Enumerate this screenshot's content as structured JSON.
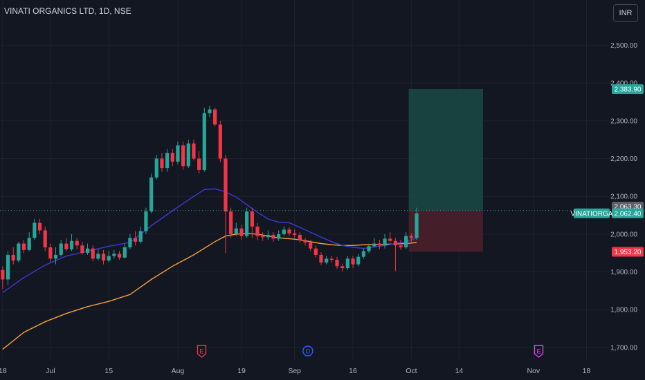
{
  "header": {
    "symbol_title": "VINATI ORGANICS LTD, 1D, NSE",
    "currency": "INR"
  },
  "colors": {
    "background": "#131722",
    "up": "#26a69a",
    "down": "#f23645",
    "ma_fast": "#3d3ad6",
    "ma_slow": "#f7a13b",
    "target_zone": "#1a4a44",
    "stop_zone": "#4a1f2a",
    "event_earnings": "#f23645",
    "event_dividend": "#2962ff",
    "event_future_earnings": "#e040fb"
  },
  "chart_data": {
    "type": "candlestick",
    "y_ticks": [
      "2,500.00",
      "2,400.00",
      "2,300.00",
      "2,200.00",
      "2,100.00",
      "2,000.00",
      "1,900.00",
      "1,800.00",
      "1,700.00"
    ],
    "y_tick_values": [
      2500,
      2400,
      2300,
      2200,
      2100,
      2000,
      1900,
      1800,
      1700
    ],
    "ylim": [
      1665,
      2565
    ],
    "x_ticks": [
      {
        "label": "18",
        "idx": 0
      },
      {
        "label": "Jul",
        "idx": 9
      },
      {
        "label": "15",
        "idx": 20
      },
      {
        "label": "Aug",
        "idx": 33
      },
      {
        "label": "19",
        "idx": 45
      },
      {
        "label": "Sep",
        "idx": 55
      },
      {
        "label": "16",
        "idx": 66
      },
      {
        "label": "Oct",
        "idx": 77
      },
      {
        "label": "14",
        "idx": 86
      },
      {
        "label": "Nov",
        "idx": 100
      },
      {
        "label": "18",
        "idx": 110
      }
    ],
    "x_index_range": [
      -0.5,
      114.5
    ],
    "candles": [
      [
        1905,
        1880,
        1915,
        1855
      ],
      [
        1880,
        1945,
        1955,
        1865
      ],
      [
        1945,
        1930,
        1965,
        1920
      ],
      [
        1930,
        1975,
        1980,
        1925
      ],
      [
        1975,
        1958,
        1985,
        1950
      ],
      [
        1958,
        1990,
        2005,
        1955
      ],
      [
        1990,
        2030,
        2040,
        1985
      ],
      [
        2030,
        2010,
        2040,
        2000
      ],
      [
        2010,
        1965,
        2020,
        1955
      ],
      [
        1965,
        1935,
        1975,
        1925
      ],
      [
        1935,
        1945,
        1965,
        1920
      ],
      [
        1945,
        1975,
        1985,
        1940
      ],
      [
        1975,
        1960,
        1990,
        1955
      ],
      [
        1960,
        1982,
        2000,
        1955
      ],
      [
        1982,
        1970,
        1990,
        1960
      ],
      [
        1970,
        1950,
        1980,
        1945
      ],
      [
        1950,
        1962,
        1975,
        1945
      ],
      [
        1962,
        1935,
        1970,
        1928
      ],
      [
        1935,
        1948,
        1960,
        1930
      ],
      [
        1948,
        1930,
        1958,
        1920
      ],
      [
        1930,
        1942,
        1955,
        1925
      ],
      [
        1942,
        1948,
        1958,
        1935
      ],
      [
        1948,
        1938,
        1956,
        1932
      ],
      [
        1938,
        1965,
        1975,
        1935
      ],
      [
        1965,
        1990,
        2000,
        1960
      ],
      [
        1990,
        1980,
        2008,
        1970
      ],
      [
        1980,
        2008,
        2020,
        1975
      ],
      [
        2008,
        2060,
        2070,
        2000
      ],
      [
        2060,
        2150,
        2160,
        2055
      ],
      [
        2150,
        2200,
        2210,
        2145
      ],
      [
        2200,
        2175,
        2215,
        2165
      ],
      [
        2175,
        2215,
        2225,
        2165
      ],
      [
        2215,
        2192,
        2225,
        2180
      ],
      [
        2192,
        2235,
        2245,
        2185
      ],
      [
        2235,
        2180,
        2245,
        2170
      ],
      [
        2180,
        2240,
        2250,
        2175
      ],
      [
        2240,
        2200,
        2250,
        2195
      ],
      [
        2200,
        2170,
        2220,
        2160
      ],
      [
        2170,
        2320,
        2335,
        2165
      ],
      [
        2320,
        2330,
        2340,
        2310
      ],
      [
        2330,
        2290,
        2335,
        2285
      ],
      [
        2290,
        2200,
        2300,
        2190
      ],
      [
        2200,
        2060,
        2210,
        1950
      ],
      [
        2060,
        2000,
        2070,
        1990
      ],
      [
        2000,
        2015,
        2030,
        1995
      ],
      [
        2015,
        1995,
        2025,
        1985
      ],
      [
        1995,
        2060,
        2070,
        1990
      ],
      [
        2060,
        2020,
        2070,
        1990
      ],
      [
        2020,
        1995,
        2030,
        1985
      ],
      [
        1995,
        1992,
        2005,
        1982
      ],
      [
        1992,
        1998,
        2010,
        1985
      ],
      [
        1998,
        1988,
        2005,
        1980
      ],
      [
        1988,
        2000,
        2010,
        1982
      ],
      [
        2000,
        2012,
        2020,
        1995
      ],
      [
        2012,
        2002,
        2018,
        1995
      ],
      [
        2002,
        1998,
        2012,
        1990
      ],
      [
        1998,
        1985,
        2005,
        1978
      ],
      [
        1985,
        1978,
        1990,
        1970
      ],
      [
        1978,
        1962,
        1985,
        1955
      ],
      [
        1962,
        1945,
        1970,
        1938
      ],
      [
        1945,
        1925,
        1952,
        1918
      ],
      [
        1925,
        1935,
        1942,
        1920
      ],
      [
        1935,
        1932,
        1942,
        1925
      ],
      [
        1932,
        1915,
        1940,
        1908
      ],
      [
        1915,
        1910,
        1922,
        1902
      ],
      [
        1910,
        1935,
        1942,
        1905
      ],
      [
        1935,
        1920,
        1942,
        1910
      ],
      [
        1920,
        1940,
        1948,
        1915
      ],
      [
        1940,
        1955,
        1962,
        1935
      ],
      [
        1955,
        1968,
        1975,
        1950
      ],
      [
        1968,
        1975,
        1990,
        1965
      ],
      [
        1975,
        1970,
        1985,
        1960
      ],
      [
        1970,
        1988,
        2000,
        1962
      ],
      [
        1988,
        1982,
        2005,
        1978
      ],
      [
        1982,
        1970,
        1990,
        1902
      ],
      [
        1970,
        1965,
        1985,
        1958
      ],
      [
        1965,
        1995,
        2005,
        1960
      ],
      [
        1995,
        1990,
        2002,
        1980
      ],
      [
        1990,
        2055,
        2070,
        1985
      ]
    ],
    "ma_fast": [
      [
        0,
        1845
      ],
      [
        4,
        1885
      ],
      [
        8,
        1918
      ],
      [
        12,
        1942
      ],
      [
        16,
        1955
      ],
      [
        20,
        1968
      ],
      [
        24,
        1978
      ],
      [
        28,
        2022
      ],
      [
        32,
        2062
      ],
      [
        36,
        2100
      ],
      [
        38,
        2118
      ],
      [
        40,
        2120
      ],
      [
        42,
        2112
      ],
      [
        44,
        2098
      ],
      [
        46,
        2078
      ],
      [
        48,
        2058
      ],
      [
        50,
        2040
      ],
      [
        52,
        2032
      ],
      [
        54,
        2030
      ],
      [
        56,
        2018
      ],
      [
        58,
        2005
      ],
      [
        60,
        1992
      ],
      [
        62,
        1980
      ],
      [
        64,
        1970
      ],
      [
        66,
        1965
      ],
      [
        68,
        1962
      ],
      [
        70,
        1966
      ],
      [
        72,
        1970
      ],
      [
        74,
        1975
      ],
      [
        76,
        1980
      ],
      [
        78,
        1990
      ]
    ],
    "ma_slow": [
      [
        0,
        1695
      ],
      [
        4,
        1740
      ],
      [
        8,
        1768
      ],
      [
        12,
        1790
      ],
      [
        16,
        1808
      ],
      [
        20,
        1822
      ],
      [
        24,
        1840
      ],
      [
        28,
        1880
      ],
      [
        32,
        1915
      ],
      [
        36,
        1945
      ],
      [
        40,
        1980
      ],
      [
        42,
        1995
      ],
      [
        44,
        2000
      ],
      [
        46,
        2002
      ],
      [
        48,
        2000
      ],
      [
        50,
        1995
      ],
      [
        52,
        1990
      ],
      [
        54,
        1988
      ],
      [
        56,
        1985
      ],
      [
        58,
        1980
      ],
      [
        60,
        1975
      ],
      [
        62,
        1972
      ],
      [
        64,
        1970
      ],
      [
        66,
        1970
      ],
      [
        68,
        1972
      ],
      [
        70,
        1972
      ],
      [
        72,
        1973
      ],
      [
        74,
        1974
      ],
      [
        76,
        1975
      ],
      [
        78,
        1978
      ]
    ],
    "position": {
      "entry": 2062.4,
      "target": 2383.9,
      "stop": 1953.2,
      "start_idx": 76.5,
      "end_idx": 90.5
    },
    "price_tags": [
      {
        "label": "2,383.90",
        "value": 2383.9,
        "color": "#26a69a"
      },
      {
        "label": "2,063.30",
        "value": 2073,
        "color": "#5d606b"
      },
      {
        "label": "2,062.40",
        "value": 2055,
        "color": "#26a69a"
      },
      {
        "label": "1,953.20",
        "value": 1953.2,
        "color": "#f23645"
      }
    ],
    "symbol_tag": {
      "label": "VINATIORGA",
      "value": 2055,
      "color": "#26a69a"
    },
    "events": [
      {
        "letter": "E",
        "idx": 37.5,
        "color": "#f23645"
      },
      {
        "letter": "D",
        "idx": 57.5,
        "color": "#2962ff"
      },
      {
        "letter": "E",
        "idx": 101,
        "color": "#e040fb"
      }
    ]
  }
}
